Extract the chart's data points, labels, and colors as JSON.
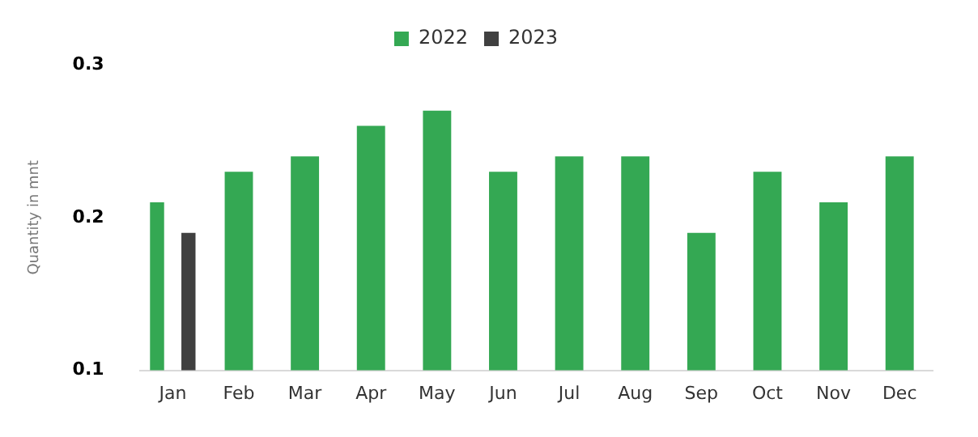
{
  "chart_data": {
    "type": "bar",
    "ylabel": "Quantity in mnt",
    "categories": [
      "Jan",
      "Feb",
      "Mar",
      "Apr",
      "May",
      "Jun",
      "Jul",
      "Aug",
      "Sep",
      "Oct",
      "Nov",
      "Dec"
    ],
    "series": [
      {
        "name": "2022",
        "color": "#34a853",
        "values": [
          0.21,
          0.23,
          0.24,
          0.26,
          0.27,
          0.23,
          0.24,
          0.24,
          0.19,
          0.23,
          0.21,
          0.24
        ]
      },
      {
        "name": "2023",
        "color": "#404040",
        "values": [
          0.19,
          null,
          null,
          null,
          null,
          null,
          null,
          null,
          null,
          null,
          null,
          null
        ]
      }
    ],
    "ylim": [
      0.1,
      0.3
    ],
    "yticks": [
      0.1,
      0.2,
      0.3
    ],
    "grid": false,
    "legend": "top"
  }
}
